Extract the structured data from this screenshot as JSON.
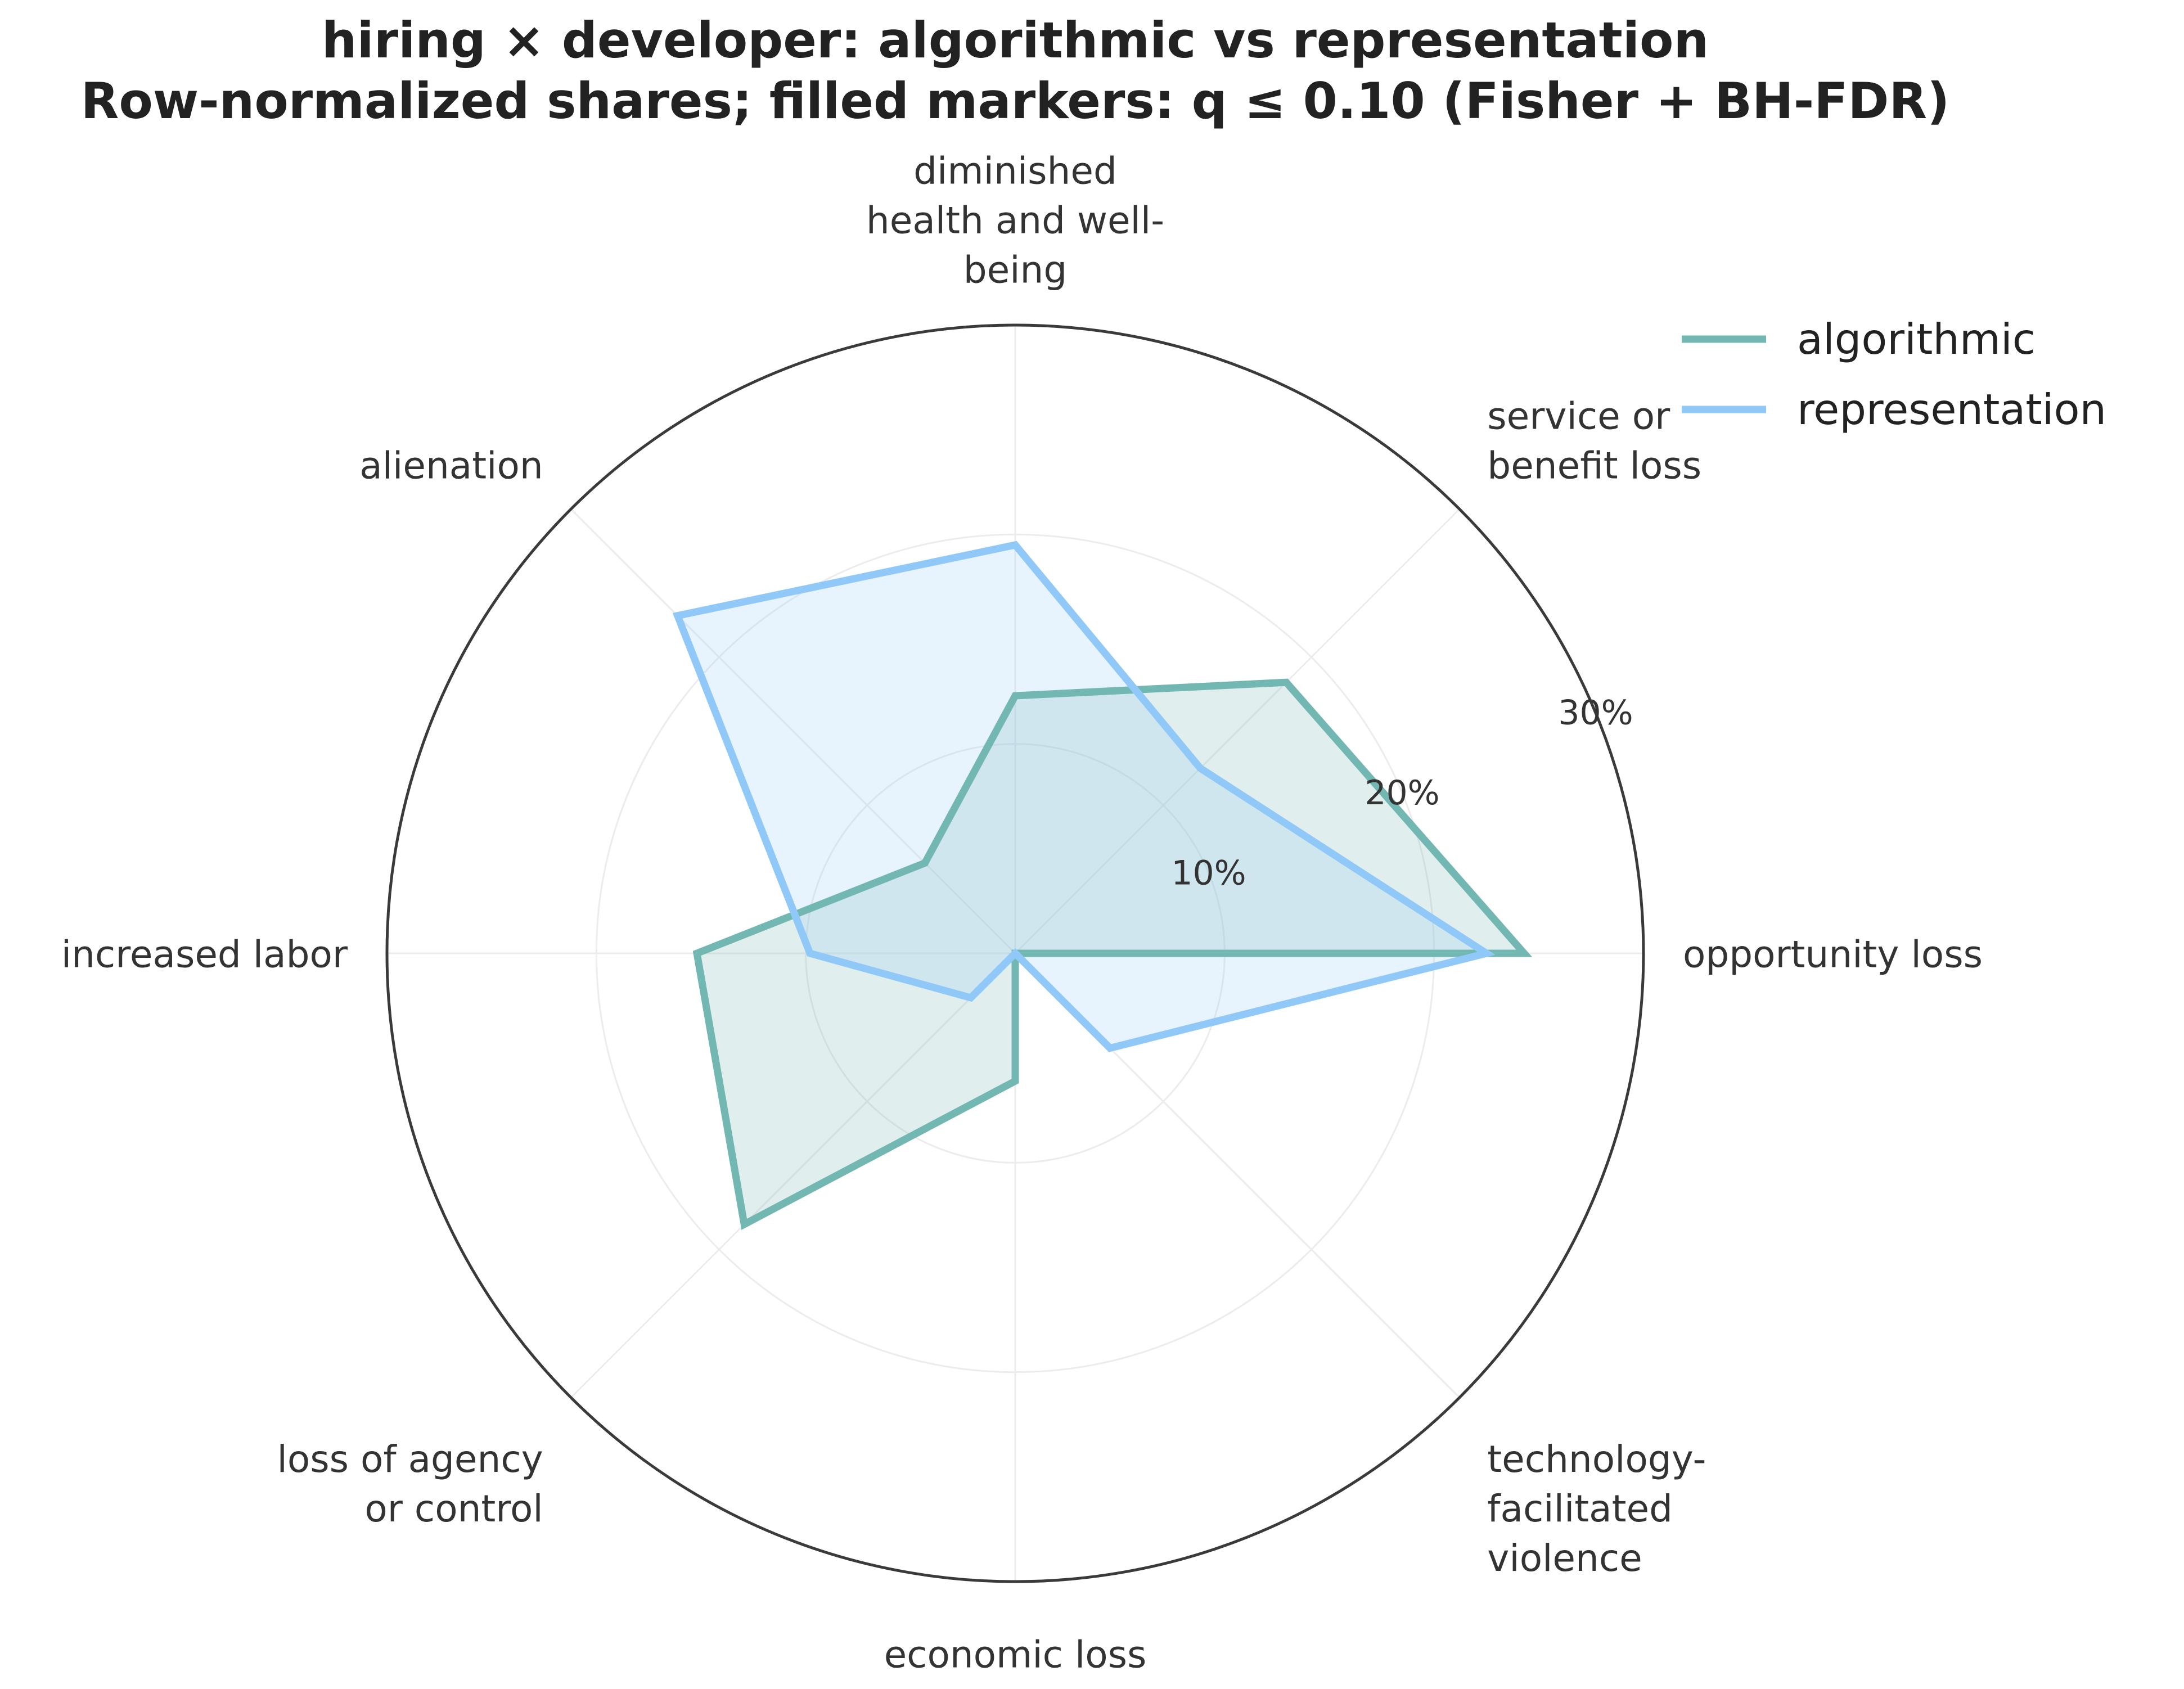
{
  "chart_data": {
    "type": "radar",
    "title_lines": [
      "hiring × developer: algorithmic vs representation",
      "Row-normalized shares; filled markers: q ≤ 0.10 (Fisher + BH-FDR)"
    ],
    "categories": [
      [
        "opportunity loss"
      ],
      [
        "service or",
        "benefit loss"
      ],
      [
        "diminished",
        "health and well-",
        "being"
      ],
      [
        "alienation"
      ],
      [
        "increased labor"
      ],
      [
        "loss of agency",
        "or control"
      ],
      [
        "economic loss"
      ],
      [
        "technology-",
        "facilitated",
        "violence"
      ]
    ],
    "radial_ticks": [
      10,
      20,
      30
    ],
    "tick_suffix": "%",
    "rlim": [
      0,
      30
    ],
    "grid": true,
    "legend_position": "top-right",
    "series": [
      {
        "name": "algorithmic",
        "color": "#72b7b2",
        "fill": "#72b7b2",
        "values": [
          24.3,
          18.3,
          12.3,
          6.1,
          15.2,
          18.3,
          6.1,
          0
        ]
      },
      {
        "name": "representation",
        "color": "#90c8f8",
        "fill": "#90c8f8",
        "values": [
          22.5,
          12.5,
          19.5,
          22.8,
          9.8,
          3.0,
          0,
          6.4
        ]
      }
    ]
  }
}
